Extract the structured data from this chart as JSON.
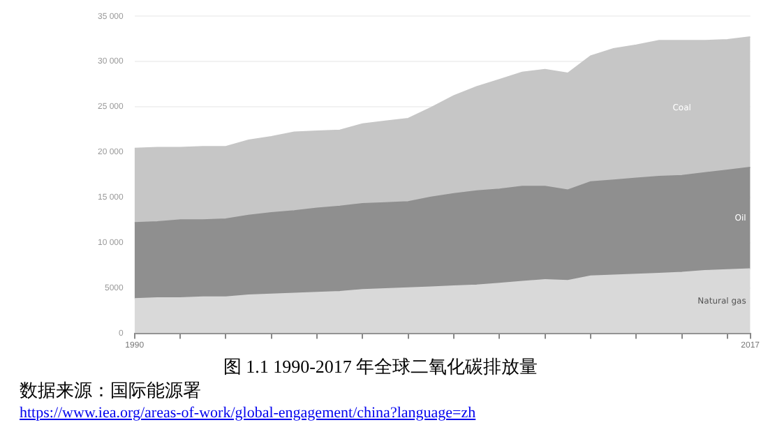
{
  "chart_data": {
    "type": "area",
    "stacked": true,
    "x": [
      1990,
      1991,
      1992,
      1993,
      1994,
      1995,
      1996,
      1997,
      1998,
      1999,
      2000,
      2001,
      2002,
      2003,
      2004,
      2005,
      2006,
      2007,
      2008,
      2009,
      2010,
      2011,
      2012,
      2013,
      2014,
      2015,
      2016,
      2017
    ],
    "series": [
      {
        "name": "Natural gas",
        "color": "#d9d9d9",
        "values": [
          3800,
          3900,
          3900,
          4000,
          4000,
          4200,
          4300,
          4400,
          4500,
          4600,
          4800,
          4900,
          5000,
          5100,
          5200,
          5300,
          5500,
          5700,
          5900,
          5800,
          6300,
          6400,
          6500,
          6600,
          6700,
          6900,
          7000,
          7100
        ]
      },
      {
        "name": "Oil",
        "color": "#8f8f8f",
        "values": [
          8400,
          8400,
          8600,
          8500,
          8600,
          8800,
          9000,
          9100,
          9300,
          9400,
          9500,
          9500,
          9500,
          9900,
          10200,
          10400,
          10400,
          10500,
          10300,
          10000,
          10400,
          10500,
          10600,
          10700,
          10700,
          10800,
          11000,
          11200
        ]
      },
      {
        "name": "Coal",
        "color": "#c6c6c6",
        "values": [
          8200,
          8200,
          8000,
          8100,
          8000,
          8300,
          8400,
          8700,
          8500,
          8400,
          8800,
          9000,
          9200,
          9900,
          10800,
          11500,
          12100,
          12600,
          12900,
          12900,
          13900,
          14500,
          14700,
          15000,
          14900,
          14600,
          14400,
          14400
        ]
      }
    ],
    "xlim": [
      1990,
      2017
    ],
    "xticks": [
      1990,
      {
        "value": 1992,
        "label": null
      },
      {
        "value": 1994,
        "label": null
      },
      {
        "value": 1996,
        "label": null
      },
      {
        "value": 1998,
        "label": null
      },
      {
        "value": 2000,
        "label": null
      },
      {
        "value": 2002,
        "label": null
      },
      {
        "value": 2004,
        "label": null
      },
      {
        "value": 2006,
        "label": null
      },
      {
        "value": 2008,
        "label": null
      },
      {
        "value": 2010,
        "label": null
      },
      {
        "value": 2012,
        "label": null
      },
      {
        "value": 2014,
        "label": null
      },
      {
        "value": 2016,
        "label": null
      },
      2017
    ],
    "ylim": [
      0,
      35000
    ],
    "yticks": [
      0,
      5000,
      {
        "value": 10000,
        "label": "10 000"
      },
      {
        "value": 15000,
        "label": "15 000"
      },
      {
        "value": 20000,
        "label": "20 000"
      },
      {
        "value": 25000,
        "label": "25 000"
      },
      {
        "value": 30000,
        "label": "30 000"
      },
      {
        "value": 35000,
        "label": "35 000"
      }
    ],
    "grid": "y",
    "legend": false,
    "annotations": [
      "图 1.1 1990-2017 年全球二氧化碳排放量",
      "数据来源：国际能源署",
      "https://www.iea.org/areas-of-work/global-engagement/china?language=zh"
    ]
  }
}
